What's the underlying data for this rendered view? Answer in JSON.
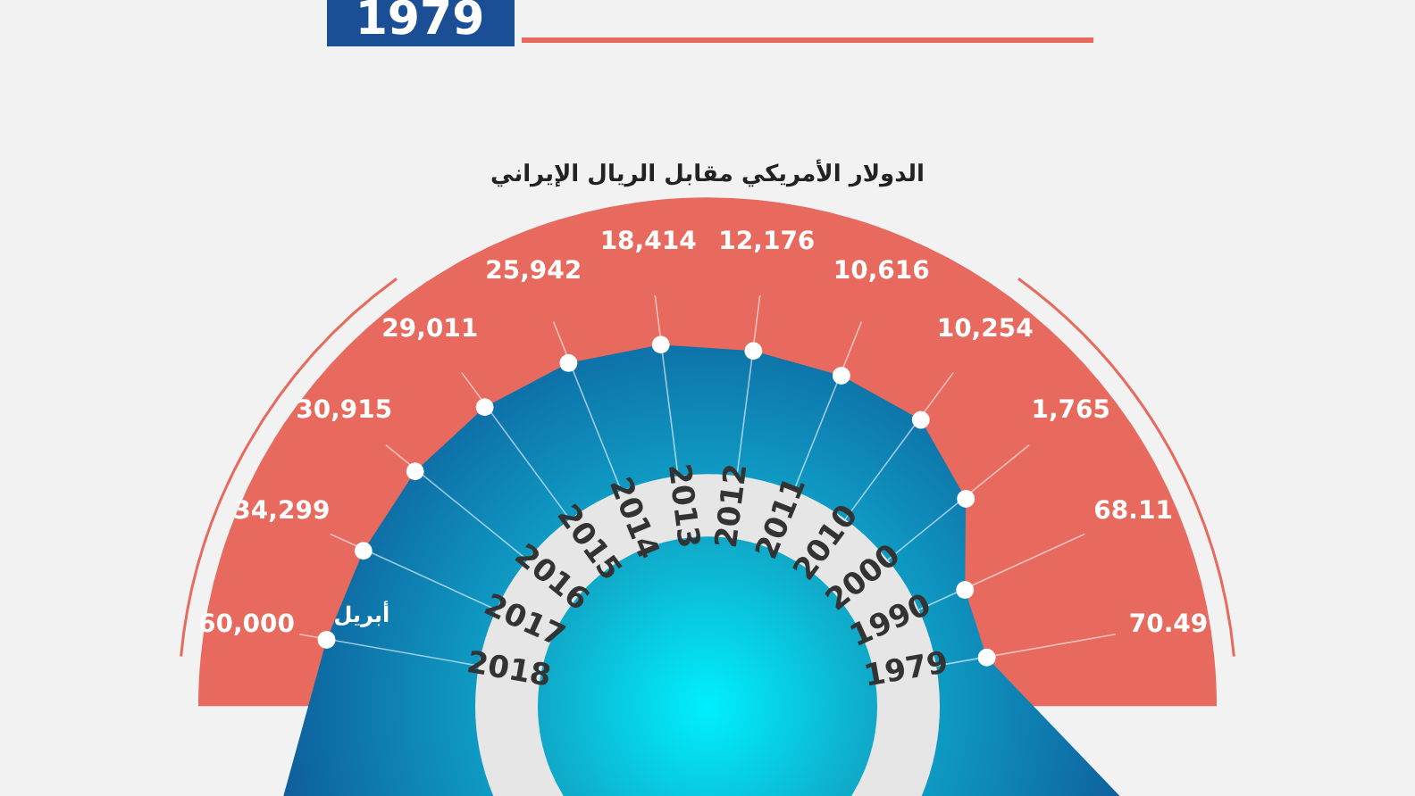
{
  "chart_data": {
    "type": "other",
    "title": "1979",
    "subtitle": "الدولار الأمريكي مقابل الريال الإيراني",
    "categories": [
      "2018",
      "2017",
      "2016",
      "2015",
      "2014",
      "2013",
      "2012",
      "2011",
      "2010",
      "2000",
      "1990",
      "1979"
    ],
    "values": [
      60000,
      34299,
      30915,
      29011,
      25942,
      18414,
      12176,
      10616,
      10254,
      1765,
      68.11,
      70.49
    ],
    "value_labels": [
      "60,000",
      "34,299",
      "30,915",
      "29,011",
      "25,942",
      "18,414",
      "12,176",
      "10,616",
      "10,254",
      "1,765",
      "68.11",
      "70.49"
    ],
    "color": "#e8695d",
    "annotations": [
      "أبريل"
    ]
  }
}
